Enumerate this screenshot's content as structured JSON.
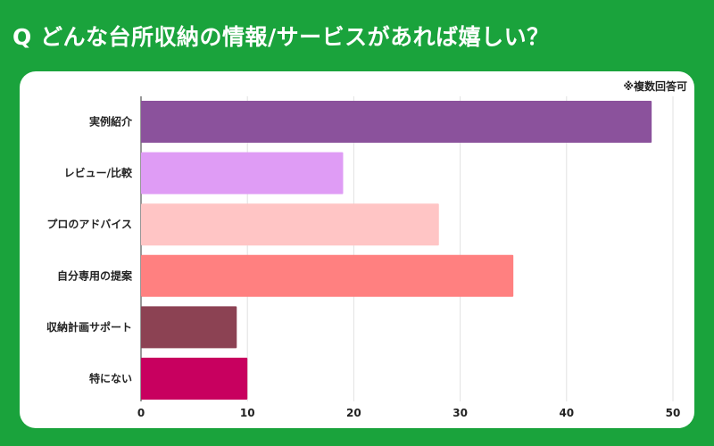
{
  "header": {
    "title": "Q どんな台所収納の情報/サービスがあれば嬉しい？"
  },
  "note": "※複数回答可",
  "chart_data": {
    "type": "bar",
    "orientation": "horizontal",
    "title": "",
    "xlabel": "",
    "ylabel": "",
    "categories": [
      "実例紹介",
      "レビュー/比較",
      "プロのアドバイス",
      "自分専用の提案",
      "収納計画サポート",
      "特にない"
    ],
    "values": [
      48,
      19,
      28,
      35,
      9,
      10
    ],
    "colors": [
      "#8b529c",
      "#df9cf5",
      "#ffc5c5",
      "#ff8080",
      "#8c4253",
      "#c8005f"
    ],
    "xlim": [
      0,
      50
    ],
    "xticks": [
      0,
      10,
      20,
      30,
      40,
      50
    ],
    "grid": true,
    "legend": "none"
  }
}
